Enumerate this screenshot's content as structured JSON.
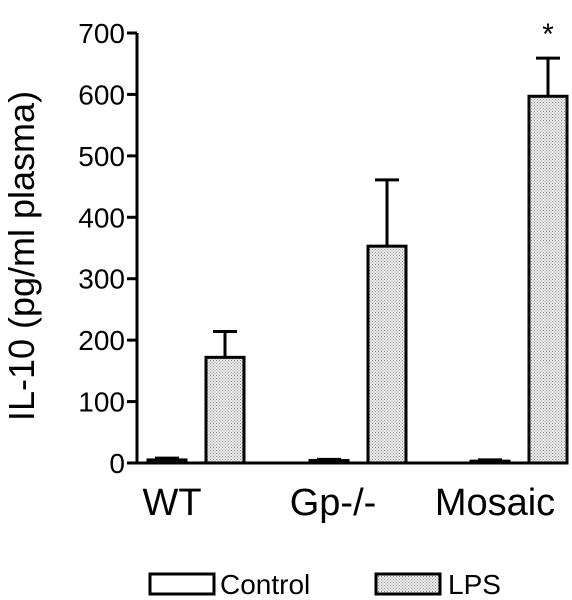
{
  "chart_data": {
    "type": "bar",
    "title": "",
    "xlabel": "",
    "ylabel": "IL-10 (pg/ml plasma)",
    "ylim": [
      0,
      700
    ],
    "yticks": [
      0,
      100,
      200,
      300,
      400,
      500,
      600,
      700
    ],
    "grid": false,
    "legend_position": "bottom",
    "categories": [
      "WT",
      "Gp-/-",
      "Mosaic"
    ],
    "series": [
      {
        "name": "Control",
        "fill": "#ffffff",
        "values": [
          5,
          4,
          3
        ],
        "error": [
          3,
          2,
          2
        ]
      },
      {
        "name": "LPS",
        "fill": "#d9d9d9",
        "values": [
          172,
          353,
          597
        ],
        "error": [
          42,
          108,
          62
        ]
      }
    ],
    "annotations": [
      {
        "category": "Mosaic",
        "series": "LPS",
        "text": "*"
      }
    ]
  }
}
